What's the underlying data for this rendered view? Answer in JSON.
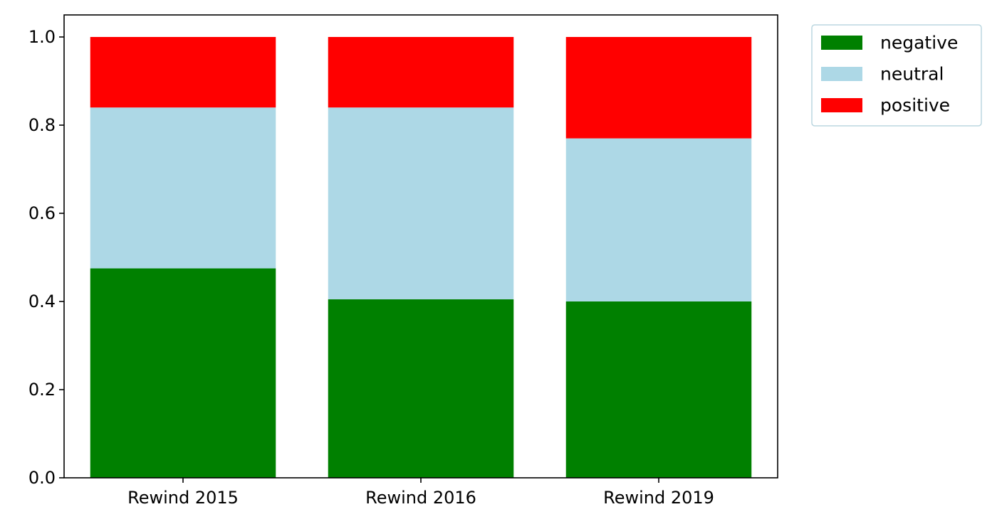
{
  "chart_data": {
    "type": "bar",
    "stacked": true,
    "categories": [
      "Rewind 2015",
      "Rewind 2016",
      "Rewind 2019"
    ],
    "series": [
      {
        "name": "negative",
        "color": "#008000",
        "values": [
          0.475,
          0.405,
          0.4
        ]
      },
      {
        "name": "neutral",
        "color": "#add8e6",
        "values": [
          0.365,
          0.435,
          0.37
        ]
      },
      {
        "name": "positive",
        "color": "#ff0000",
        "values": [
          0.16,
          0.16,
          0.23
        ]
      }
    ],
    "yticks": [
      "0.0",
      "0.2",
      "0.4",
      "0.6",
      "0.8",
      "1.0"
    ],
    "ylim": [
      0,
      1.05
    ],
    "title": "",
    "xlabel": "",
    "ylabel": "",
    "grid": false,
    "legend_position": "outside-top-right"
  }
}
